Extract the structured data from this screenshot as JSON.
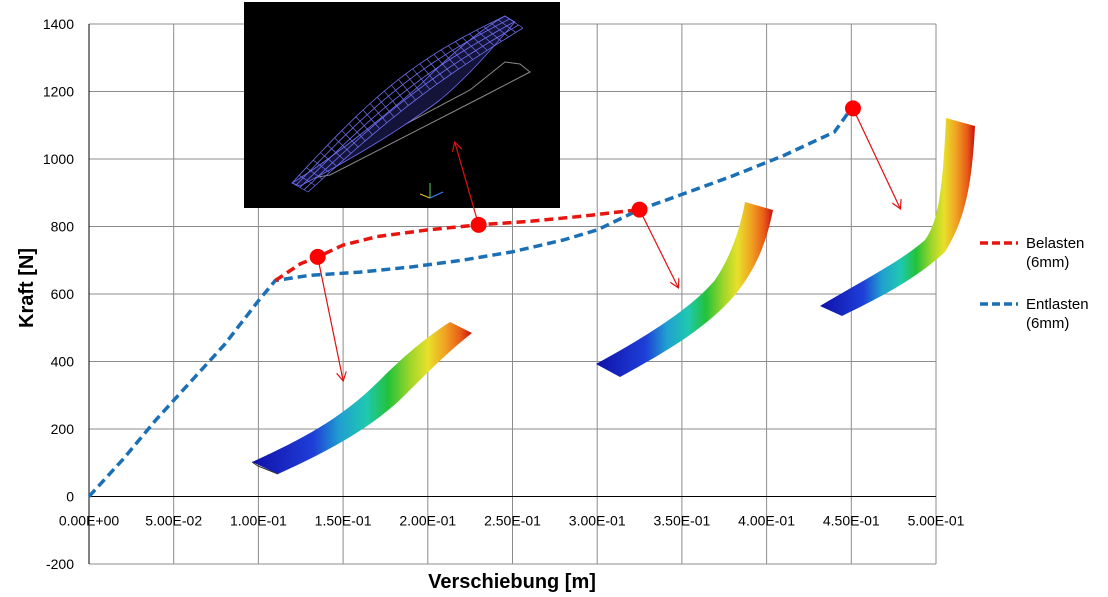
{
  "chart_data": {
    "type": "line",
    "title": "",
    "xlabel": "Verschiebung [m]",
    "ylabel": "Kraft [N]",
    "xlim": [
      0,
      0.5
    ],
    "ylim": [
      -200,
      1400
    ],
    "grid": true,
    "legend_position": "right",
    "x_tick_labels": [
      "0.00E+00",
      "5.00E-02",
      "1.00E-01",
      "1.50E-01",
      "2.00E-01",
      "2.50E-01",
      "3.00E-01",
      "3.50E-01",
      "4.00E-01",
      "4.50E-01",
      "5.00E-01"
    ],
    "x_ticks": [
      0,
      0.05,
      0.1,
      0.15,
      0.2,
      0.25,
      0.3,
      0.35,
      0.4,
      0.45,
      0.5
    ],
    "y_ticks": [
      -200,
      0,
      200,
      400,
      600,
      800,
      1000,
      1200,
      1400
    ],
    "y_tick_labels": [
      "-200",
      "0",
      "200",
      "400",
      "600",
      "800",
      "1000",
      "1200",
      "1400"
    ],
    "series": [
      {
        "name": "Belasten (6mm)",
        "legend_lines": [
          "Belasten",
          "(6mm)"
        ],
        "color": "#e8140f",
        "dash": true,
        "points": [
          [
            0.11,
            640
          ],
          [
            0.125,
            690
          ],
          [
            0.135,
            710
          ],
          [
            0.15,
            745
          ],
          [
            0.17,
            770
          ],
          [
            0.2,
            790
          ],
          [
            0.23,
            805
          ],
          [
            0.26,
            815
          ],
          [
            0.29,
            830
          ],
          [
            0.325,
            850
          ]
        ]
      },
      {
        "name": "Entlasten (6mm)",
        "legend_lines": [
          "Entlasten",
          "(6mm)"
        ],
        "color": "#1a6fb5",
        "dash": true,
        "points": [
          [
            0,
            0
          ],
          [
            0.02,
            110
          ],
          [
            0.04,
            230
          ],
          [
            0.06,
            340
          ],
          [
            0.08,
            450
          ],
          [
            0.1,
            580
          ],
          [
            0.11,
            640
          ],
          [
            0.13,
            655
          ],
          [
            0.16,
            665
          ],
          [
            0.19,
            680
          ],
          [
            0.22,
            700
          ],
          [
            0.25,
            725
          ],
          [
            0.28,
            760
          ],
          [
            0.3,
            790
          ],
          [
            0.325,
            850
          ],
          [
            0.35,
            895
          ],
          [
            0.38,
            950
          ],
          [
            0.41,
            1010
          ],
          [
            0.44,
            1080
          ],
          [
            0.45,
            1150
          ]
        ]
      }
    ],
    "markers": [
      {
        "x": 0.135,
        "y": 710
      },
      {
        "x": 0.23,
        "y": 805
      },
      {
        "x": 0.325,
        "y": 850
      },
      {
        "x": 0.451,
        "y": 1150
      }
    ]
  },
  "colors": {
    "marker": "#ff0000",
    "arrow": "#e01010",
    "grid": "#8c8c8c",
    "inset_background": "#000000",
    "inset_mesh": "#6e6ef0"
  }
}
